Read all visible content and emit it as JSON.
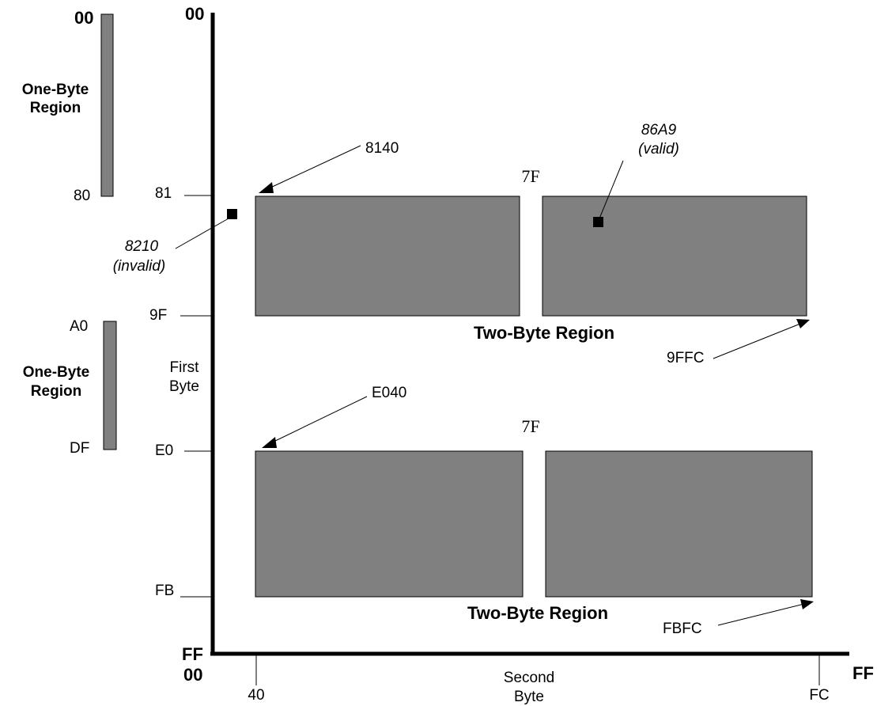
{
  "left_panel": {
    "upper": {
      "top": "00",
      "label_line1": "One-Byte",
      "label_line2": "Region",
      "bottom": "80"
    },
    "lower": {
      "top": "A0",
      "label_line1": "One-Byte",
      "label_line2": "Region",
      "bottom": "DF"
    }
  },
  "y_axis": {
    "origin": "00",
    "end": "FF",
    "ticks": [
      "81",
      "9F",
      "E0",
      "FB"
    ],
    "label_line1": "First",
    "label_line2": "Byte"
  },
  "x_axis": {
    "origin": "00",
    "end": "FF",
    "ticks": [
      "40",
      "FC"
    ],
    "label_line1": "Second",
    "label_line2": "Byte"
  },
  "regions": {
    "upper": {
      "gap_label": "7F",
      "name": "Two-Byte Region",
      "start_label": "8140",
      "end_label": "9FFC"
    },
    "lower": {
      "gap_label": "7F",
      "name": "Two-Byte Region",
      "start_label": "E040",
      "end_label": "FBFC"
    }
  },
  "points": {
    "invalid": {
      "code": "8210",
      "status": "(invalid)"
    },
    "valid": {
      "code": "86A9",
      "status": "(valid)"
    }
  }
}
